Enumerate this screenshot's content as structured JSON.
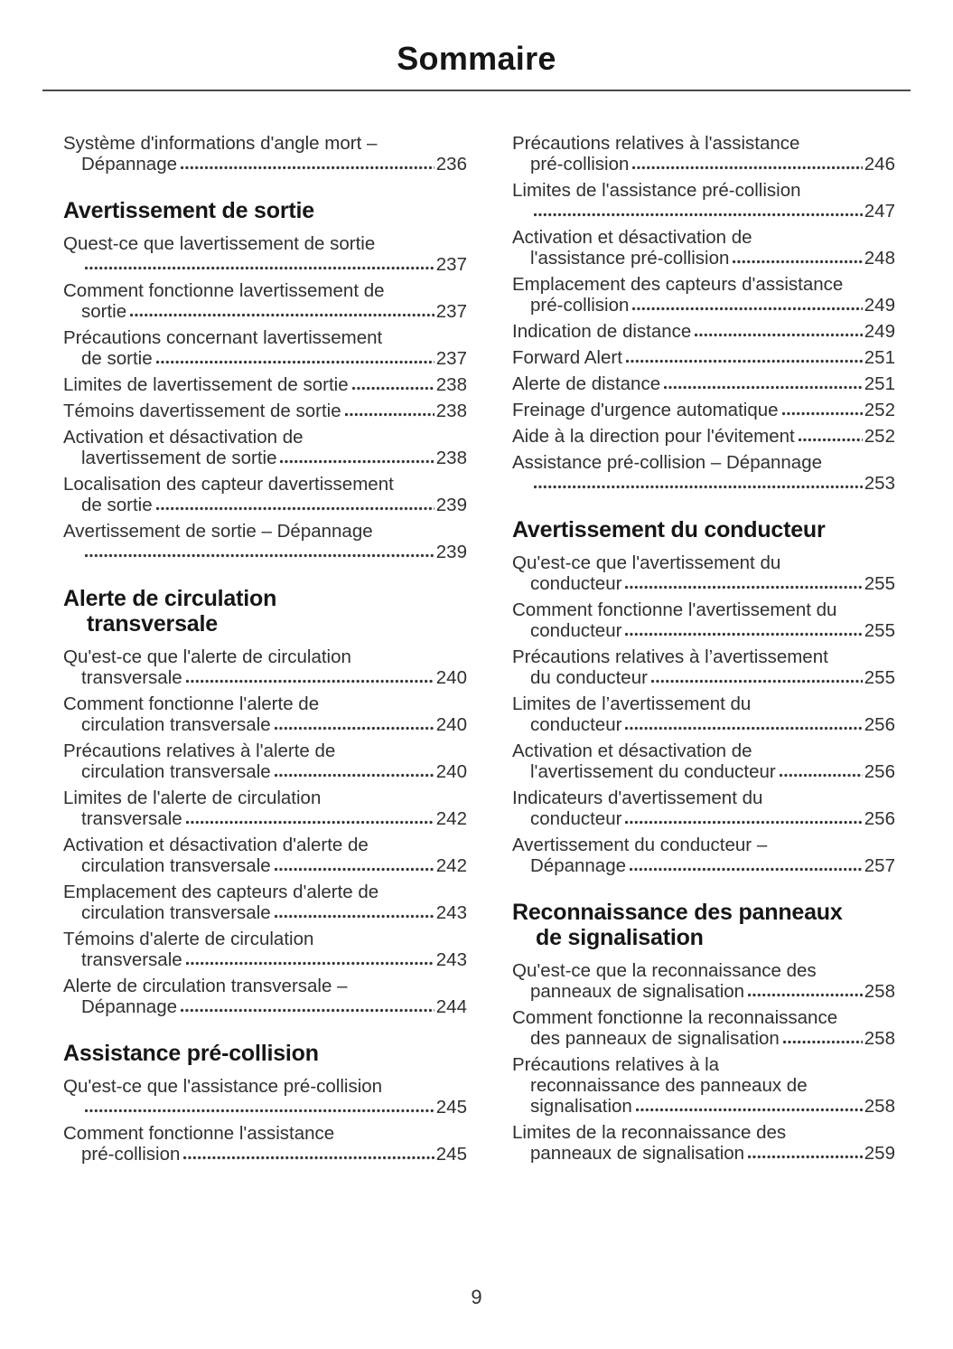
{
  "page": {
    "title": "Sommaire",
    "page_number": "9"
  },
  "toc": {
    "left": [
      {
        "type": "entry",
        "lines": [
          "Système d'informations d'angle mort –",
          "Dépannage"
        ],
        "page": "236"
      },
      {
        "type": "heading",
        "lines": [
          "Avertissement de sortie"
        ]
      },
      {
        "type": "entry",
        "lines": [
          "Quest-ce que lavertissement de sortie",
          ""
        ],
        "page": "237"
      },
      {
        "type": "entry",
        "lines": [
          "Comment fonctionne lavertissement de",
          "sortie"
        ],
        "page": "237"
      },
      {
        "type": "entry",
        "lines": [
          "Précautions concernant lavertissement",
          "de sortie"
        ],
        "page": "237"
      },
      {
        "type": "entry",
        "lines": [
          "Limites de lavertissement de sortie"
        ],
        "page": "238"
      },
      {
        "type": "entry",
        "lines": [
          "Témoins davertissement de sortie"
        ],
        "page": "238"
      },
      {
        "type": "entry",
        "lines": [
          "Activation et désactivation de",
          "lavertissement de sortie"
        ],
        "page": "238"
      },
      {
        "type": "entry",
        "lines": [
          "Localisation des capteur davertissement",
          "de sortie"
        ],
        "page": "239"
      },
      {
        "type": "entry",
        "lines": [
          "Avertissement de sortie – Dépannage",
          ""
        ],
        "page": "239"
      },
      {
        "type": "heading",
        "lines": [
          "Alerte de circulation",
          "transversale"
        ]
      },
      {
        "type": "entry",
        "lines": [
          "Qu'est-ce que l'alerte de circulation",
          "transversale"
        ],
        "page": "240"
      },
      {
        "type": "entry",
        "lines": [
          "Comment fonctionne l'alerte de",
          "circulation transversale"
        ],
        "page": "240"
      },
      {
        "type": "entry",
        "lines": [
          "Précautions relatives à l'alerte de",
          "circulation transversale"
        ],
        "page": "240"
      },
      {
        "type": "entry",
        "lines": [
          "Limites de l'alerte de circulation",
          "transversale"
        ],
        "page": "242"
      },
      {
        "type": "entry",
        "lines": [
          "Activation et désactivation d'alerte de",
          "circulation transversale"
        ],
        "page": "242"
      },
      {
        "type": "entry",
        "lines": [
          "Emplacement des capteurs d'alerte de",
          "circulation transversale"
        ],
        "page": "243"
      },
      {
        "type": "entry",
        "lines": [
          "Témoins d'alerte de circulation",
          "transversale"
        ],
        "page": "243"
      },
      {
        "type": "entry",
        "lines": [
          "Alerte de circulation transversale –",
          "Dépannage"
        ],
        "page": "244"
      },
      {
        "type": "heading",
        "lines": [
          "Assistance pré-collision"
        ]
      },
      {
        "type": "entry",
        "lines": [
          "Qu'est-ce que l'assistance pré-collision",
          ""
        ],
        "page": "245"
      },
      {
        "type": "entry",
        "lines": [
          "Comment fonctionne l'assistance",
          "pré-collision"
        ],
        "page": "245"
      }
    ],
    "right": [
      {
        "type": "entry",
        "lines": [
          "Précautions relatives à l'assistance",
          "pré-collision"
        ],
        "page": "246"
      },
      {
        "type": "entry",
        "lines": [
          "Limites de l'assistance pré-collision",
          ""
        ],
        "page": "247"
      },
      {
        "type": "entry",
        "lines": [
          "Activation et désactivation de",
          "l'assistance pré-collision"
        ],
        "page": "248"
      },
      {
        "type": "entry",
        "lines": [
          "Emplacement des capteurs d'assistance",
          "pré-collision"
        ],
        "page": "249"
      },
      {
        "type": "entry",
        "lines": [
          "Indication de distance"
        ],
        "page": "249"
      },
      {
        "type": "entry",
        "lines": [
          "Forward Alert"
        ],
        "page": "251"
      },
      {
        "type": "entry",
        "lines": [
          "Alerte de distance"
        ],
        "page": "251"
      },
      {
        "type": "entry",
        "lines": [
          "Freinage d'urgence automatique"
        ],
        "page": "252"
      },
      {
        "type": "entry",
        "lines": [
          "Aide à la direction pour l'évitement"
        ],
        "page": "252"
      },
      {
        "type": "entry",
        "lines": [
          "Assistance pré-collision – Dépannage",
          ""
        ],
        "page": "253"
      },
      {
        "type": "heading",
        "lines": [
          "Avertissement du conducteur"
        ]
      },
      {
        "type": "entry",
        "lines": [
          "Qu'est-ce que l'avertissement du",
          "conducteur"
        ],
        "page": "255"
      },
      {
        "type": "entry",
        "lines": [
          "Comment fonctionne l'avertissement du",
          "conducteur"
        ],
        "page": "255"
      },
      {
        "type": "entry",
        "lines": [
          "Précautions relatives à l’avertissement",
          "du conducteur"
        ],
        "page": "255"
      },
      {
        "type": "entry",
        "lines": [
          "Limites de l’avertissement du",
          "conducteur"
        ],
        "page": "256"
      },
      {
        "type": "entry",
        "lines": [
          "Activation et désactivation de",
          "l'avertissement du conducteur"
        ],
        "page": "256"
      },
      {
        "type": "entry",
        "lines": [
          "Indicateurs d'avertissement du",
          "conducteur"
        ],
        "page": "256"
      },
      {
        "type": "entry",
        "lines": [
          "Avertissement du conducteur –",
          "Dépannage"
        ],
        "page": "257"
      },
      {
        "type": "heading",
        "lines": [
          "Reconnaissance des panneaux",
          "de signalisation"
        ]
      },
      {
        "type": "entry",
        "lines": [
          "Qu'est-ce que la reconnaissance des",
          "panneaux de signalisation"
        ],
        "page": "258"
      },
      {
        "type": "entry",
        "lines": [
          "Comment fonctionne la reconnaissance",
          "des panneaux de signalisation"
        ],
        "page": "258"
      },
      {
        "type": "entry",
        "lines": [
          "Précautions relatives à la",
          "reconnaissance des panneaux de",
          "signalisation"
        ],
        "page": "258"
      },
      {
        "type": "entry",
        "lines": [
          "Limites de la reconnaissance des",
          "panneaux de signalisation"
        ],
        "page": "259"
      }
    ]
  }
}
